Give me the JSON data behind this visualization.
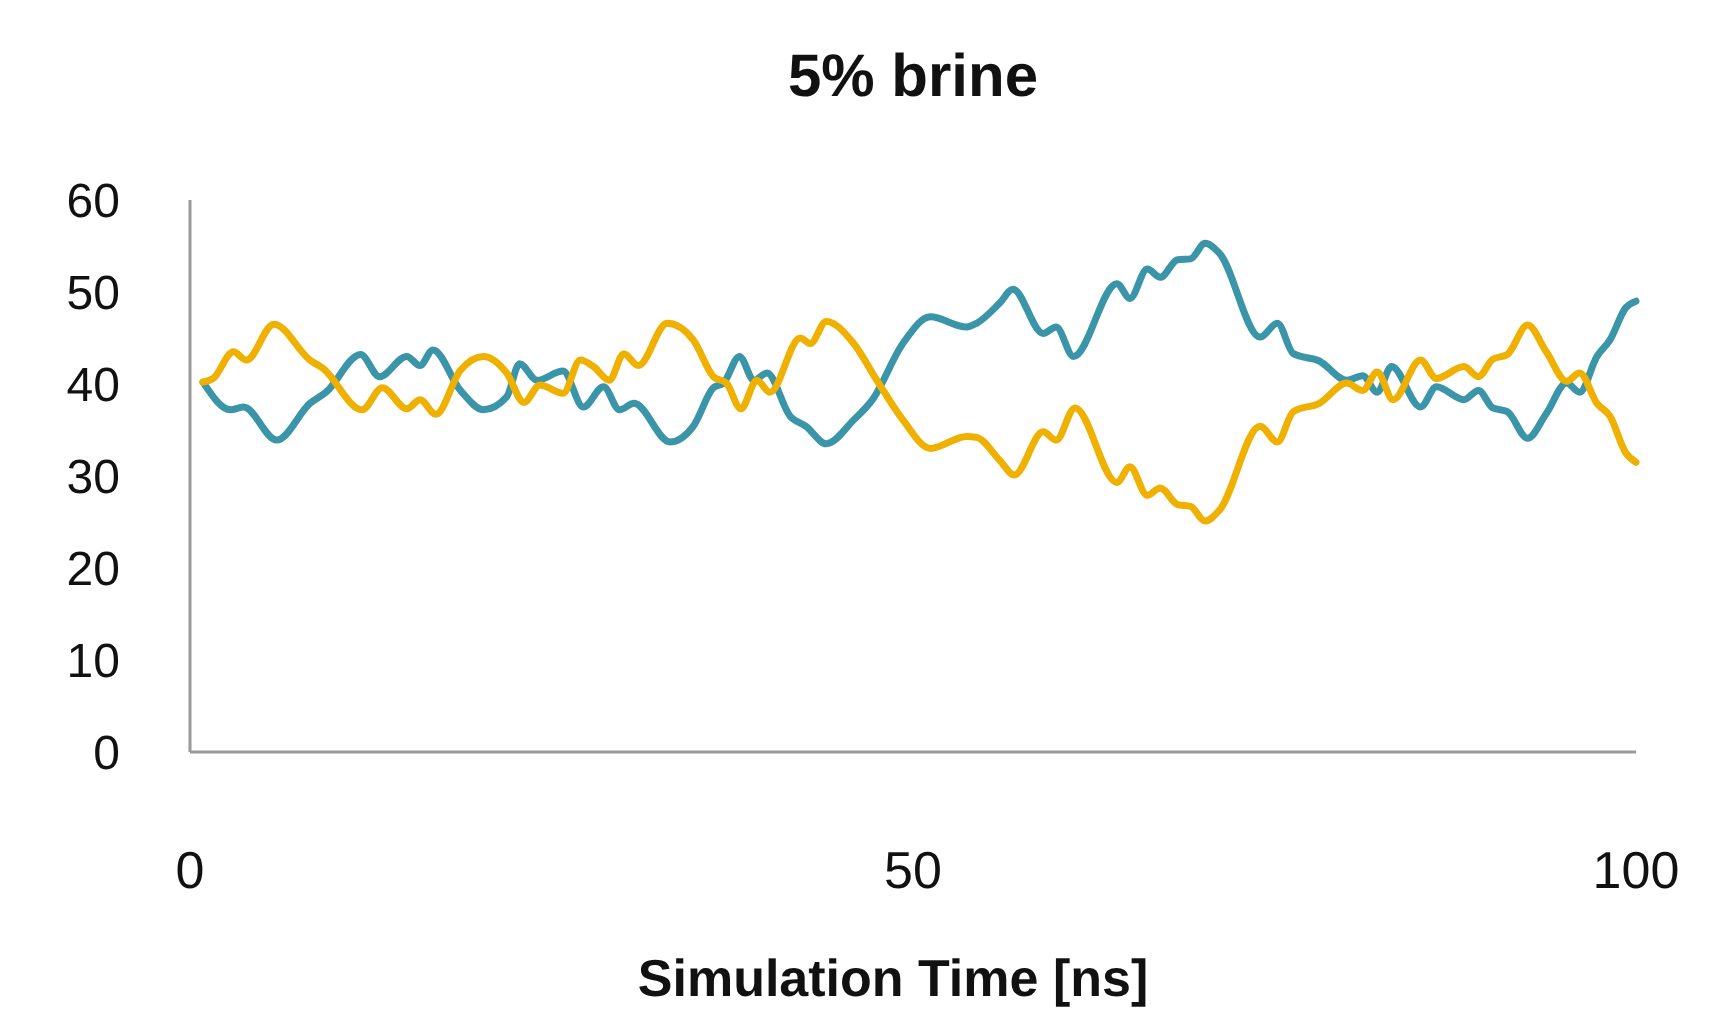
{
  "chart_data": {
    "type": "line",
    "title": "5% brine",
    "xlabel": "Simulation Time [ns]",
    "xlim": [
      0,
      100
    ],
    "xticks": [
      0,
      50,
      100
    ],
    "ylim": [
      0,
      60
    ],
    "yticks": [
      0,
      10,
      20,
      30,
      40,
      50,
      60
    ],
    "grid": false,
    "marker": "none",
    "line_style": "solid",
    "series": [
      {
        "color": "#3a95a8",
        "x": [
          0.9,
          2.8,
          3.7,
          6.0,
          8.3,
          9.4,
          11.8,
          13.1,
          15.0,
          15.9,
          16.8,
          18.7,
          20.3,
          21.9,
          22.8,
          24.0,
          25.8,
          27.2,
          28.6,
          29.7,
          30.7,
          33.2,
          34.8,
          36.2,
          36.9,
          38.0,
          39.0,
          39.9,
          41.5,
          42.6,
          44.0,
          45.9,
          47.2,
          49.3,
          51.2,
          53.7,
          54.4,
          56.0,
          56.9,
          59.0,
          59.9,
          61.1,
          64.1,
          65.0,
          66.2,
          67.1,
          68.3,
          69.2,
          70.2,
          71.2,
          74.0,
          75.2,
          76.3,
          78.1,
          80.0,
          81.1,
          82.1,
          83.1,
          85.1,
          86.2,
          88.1,
          89.1,
          90.1,
          91.1,
          92.5,
          93.8,
          95.2,
          96.1,
          97.3,
          98.2,
          99.3,
          100
        ],
        "values": [
          40.2,
          37.2,
          37.5,
          33.9,
          37.9,
          39.1,
          43.2,
          40.8,
          43.0,
          42.0,
          43.7,
          39.3,
          37.2,
          38.6,
          42.2,
          40.4,
          41.4,
          37.5,
          39.7,
          37.2,
          37.9,
          33.7,
          35.4,
          39.6,
          40.1,
          43.0,
          40.4,
          41.2,
          36.5,
          35.4,
          33.5,
          36.1,
          38.3,
          44.4,
          47.3,
          46.2,
          46.6,
          48.8,
          50.3,
          45.5,
          46.2,
          43.0,
          50.9,
          49.3,
          52.5,
          51.6,
          53.5,
          53.6,
          55.3,
          54.2,
          45.1,
          46.6,
          43.3,
          42.5,
          40.4,
          40.9,
          39.1,
          41.9,
          37.5,
          39.7,
          38.3,
          39.3,
          37.4,
          37.0,
          34.1,
          36.8,
          40.1,
          39.1,
          43.0,
          44.8,
          48.3,
          49.0
        ]
      },
      {
        "color": "#f0b000",
        "x": [
          0.9,
          1.6,
          3.0,
          3.9,
          5.8,
          8.3,
          9.2,
          11.9,
          13.3,
          15.0,
          15.9,
          17.0,
          18.7,
          20.3,
          21.9,
          23.1,
          24.2,
          25.8,
          27.0,
          27.9,
          29.0,
          30.0,
          31.0,
          33.0,
          34.8,
          36.2,
          37.1,
          38.1,
          39.2,
          40.1,
          42.2,
          42.9,
          44.0,
          45.9,
          47.5,
          49.3,
          51.2,
          53.7,
          54.4,
          56.0,
          57.0,
          59.0,
          59.9,
          61.2,
          64.1,
          65.0,
          66.2,
          67.1,
          68.3,
          69.2,
          70.2,
          71.2,
          74.0,
          75.2,
          76.3,
          78.1,
          80.0,
          81.1,
          82.1,
          83.2,
          85.1,
          86.2,
          88.1,
          89.1,
          90.1,
          91.1,
          92.5,
          93.8,
          95.2,
          96.1,
          97.3,
          98.2,
          99.3,
          100
        ],
        "values": [
          40.2,
          40.6,
          43.5,
          42.6,
          46.5,
          42.6,
          41.7,
          37.2,
          39.6,
          37.3,
          38.3,
          36.7,
          41.5,
          43.0,
          41.2,
          38.0,
          39.9,
          39.0,
          42.6,
          41.9,
          40.4,
          43.3,
          42.0,
          46.6,
          44.8,
          40.8,
          40.1,
          37.3,
          40.4,
          39.1,
          45.0,
          44.4,
          46.8,
          44.4,
          40.4,
          36.1,
          33.0,
          34.3,
          34.2,
          31.7,
          30.1,
          34.8,
          33.9,
          37.4,
          29.3,
          31.0,
          27.9,
          28.7,
          26.9,
          26.7,
          25.1,
          26.3,
          35.4,
          33.7,
          37.0,
          37.9,
          40.1,
          39.3,
          41.3,
          38.3,
          42.6,
          40.6,
          41.9,
          40.8,
          42.7,
          43.2,
          46.4,
          43.5,
          40.3,
          41.2,
          37.9,
          36.5,
          32.5,
          31.5
        ]
      }
    ]
  }
}
